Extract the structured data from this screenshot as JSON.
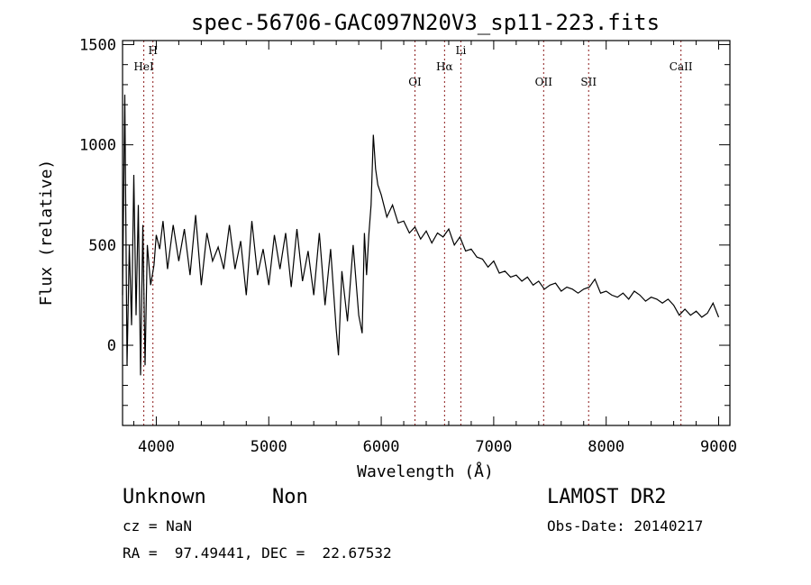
{
  "chart_data": {
    "type": "line",
    "title": "spec-56706-GAC097N20V3_sp11-223.fits",
    "xlabel": "Wavelength (Å)",
    "ylabel": "Flux (relative)",
    "xlim": [
      3700,
      9100
    ],
    "ylim": [
      -400,
      1520
    ],
    "xticks": [
      4000,
      5000,
      6000,
      7000,
      8000,
      9000
    ],
    "yticks": [
      0,
      500,
      1000,
      1500
    ],
    "line_color": "#000000",
    "marker_color": "#8b1a1a",
    "grid": false,
    "spectral_lines": [
      {
        "label": "HeI",
        "x": 3889
      },
      {
        "label": "H",
        "x": 3970
      },
      {
        "label": "OI",
        "x": 6300
      },
      {
        "label": "Hα",
        "x": 6563
      },
      {
        "label": "Li",
        "x": 6708
      },
      {
        "label": "OII",
        "x": 7444
      },
      {
        "label": "SII",
        "x": 7844
      },
      {
        "label": "CaII",
        "x": 8665
      }
    ],
    "series": [
      {
        "x": [
          3700,
          3720,
          3740,
          3760,
          3780,
          3800,
          3820,
          3840,
          3860,
          3880,
          3900,
          3920,
          3950,
          3980,
          4000,
          4030,
          4060,
          4100,
          4150,
          4200,
          4250,
          4300,
          4350,
          4400,
          4450,
          4500,
          4550,
          4600,
          4650,
          4700,
          4750,
          4800,
          4850,
          4900,
          4950,
          5000,
          5050,
          5100,
          5150,
          5200,
          5250,
          5300,
          5350,
          5400,
          5450,
          5500,
          5550,
          5600,
          5620,
          5650,
          5700,
          5750,
          5800,
          5830,
          5850,
          5870,
          5890,
          5910,
          5930,
          5950,
          5970,
          6000,
          6050,
          6100,
          6150,
          6200,
          6250,
          6300,
          6350,
          6400,
          6450,
          6500,
          6550,
          6600,
          6650,
          6700,
          6750,
          6800,
          6850,
          6900,
          6950,
          7000,
          7050,
          7100,
          7150,
          7200,
          7250,
          7300,
          7350,
          7400,
          7450,
          7500,
          7550,
          7600,
          7650,
          7700,
          7750,
          7800,
          7850,
          7900,
          7950,
          8000,
          8050,
          8100,
          8150,
          8200,
          8250,
          8300,
          8350,
          8400,
          8450,
          8500,
          8550,
          8600,
          8650,
          8700,
          8750,
          8800,
          8850,
          8900,
          8950,
          9000
        ],
        "y": [
          250,
          1250,
          -100,
          500,
          100,
          850,
          150,
          700,
          -150,
          600,
          -100,
          500,
          300,
          400,
          550,
          480,
          620,
          380,
          600,
          420,
          580,
          350,
          650,
          300,
          560,
          420,
          490,
          380,
          600,
          380,
          520,
          250,
          620,
          350,
          480,
          300,
          550,
          380,
          560,
          290,
          580,
          320,
          470,
          250,
          560,
          200,
          480,
          80,
          -50,
          370,
          120,
          500,
          150,
          60,
          560,
          350,
          550,
          700,
          1050,
          880,
          800,
          750,
          640,
          700,
          610,
          620,
          560,
          590,
          530,
          570,
          510,
          560,
          540,
          580,
          500,
          540,
          470,
          480,
          440,
          430,
          390,
          420,
          360,
          370,
          340,
          350,
          320,
          340,
          300,
          320,
          280,
          300,
          310,
          270,
          290,
          280,
          260,
          280,
          290,
          330,
          260,
          270,
          250,
          240,
          260,
          230,
          270,
          250,
          220,
          240,
          230,
          210,
          230,
          200,
          150,
          180,
          150,
          170,
          140,
          160,
          210,
          140
        ]
      }
    ]
  },
  "footer": {
    "object_type": "Unknown",
    "object_class": "Non",
    "survey": "LAMOST DR2",
    "redshift": "cz = NaN",
    "obs_date": "Obs-Date: 20140217",
    "coords": "RA =  97.49441, DEC =  22.67532"
  }
}
